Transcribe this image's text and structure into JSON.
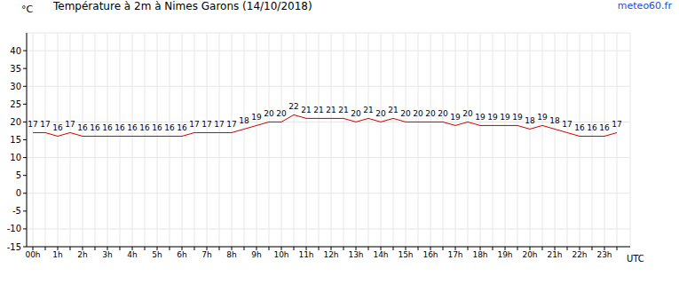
{
  "chart_data": {
    "type": "line",
    "title": "Température à 2m à Nimes Garons (14/10/2018)",
    "ylabel": "°C",
    "xlabel": "UTC",
    "source": "meteo60.fr",
    "categories": [
      "00h",
      null,
      "1h",
      null,
      "2h",
      null,
      "3h",
      null,
      "4h",
      null,
      "5h",
      null,
      "6h",
      null,
      "7h",
      null,
      "8h",
      null,
      "9h",
      null,
      "10h",
      null,
      "11h",
      null,
      "12h",
      null,
      "13h",
      null,
      "14h",
      null,
      "15h",
      null,
      "16h",
      null,
      "17h",
      null,
      "18h",
      null,
      "19h",
      null,
      "20h",
      null,
      "21h",
      null,
      "22h",
      null,
      "23h",
      null
    ],
    "values": [
      17,
      17,
      16,
      17,
      16,
      16,
      16,
      16,
      16,
      16,
      16,
      16,
      16,
      17,
      17,
      17,
      17,
      18,
      19,
      20,
      20,
      22,
      21,
      21,
      21,
      21,
      20,
      21,
      20,
      21,
      20,
      20,
      20,
      20,
      19,
      20,
      19,
      19,
      19,
      19,
      18,
      19,
      18,
      17,
      16,
      16,
      16,
      17
    ],
    "color": "#cc0000",
    "ylim": [
      -15,
      45
    ],
    "yticks": [
      -15,
      -10,
      -5,
      0,
      5,
      10,
      15,
      20,
      25,
      30,
      35,
      40
    ],
    "grid": true,
    "data_labels": true
  }
}
